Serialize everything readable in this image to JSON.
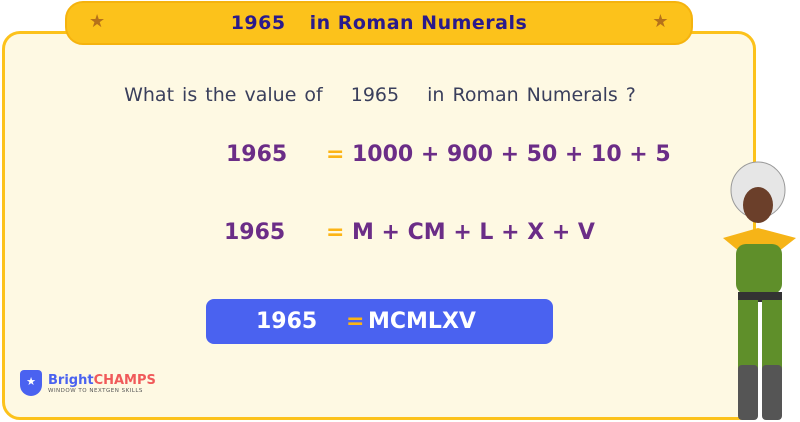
{
  "title": {
    "number": "1965",
    "text": "in Roman Numerals"
  },
  "question": {
    "prefix": "What is the value of",
    "number": "1965",
    "suffix": "in Roman Numerals ?"
  },
  "expansion": {
    "number": "1965",
    "equals": "=",
    "value": "1000 + 900 + 50 + 10 + 5"
  },
  "roman_parts": {
    "number": "1965",
    "equals": "=",
    "value": "M + CM + L + X + V"
  },
  "answer": {
    "number": "1965",
    "equals": "=",
    "value": "MCMLXV"
  },
  "logo": {
    "brand_a": "Bright",
    "brand_b": "CHAMPS",
    "tagline": "WINDOW TO NEXTGEN SKILLS"
  },
  "colors": {
    "banner": "#fcc21b",
    "card": "#fef9e3",
    "text_purple": "#6b2d87",
    "answer_bg": "#4a62f0",
    "equals": "#fcb415"
  }
}
